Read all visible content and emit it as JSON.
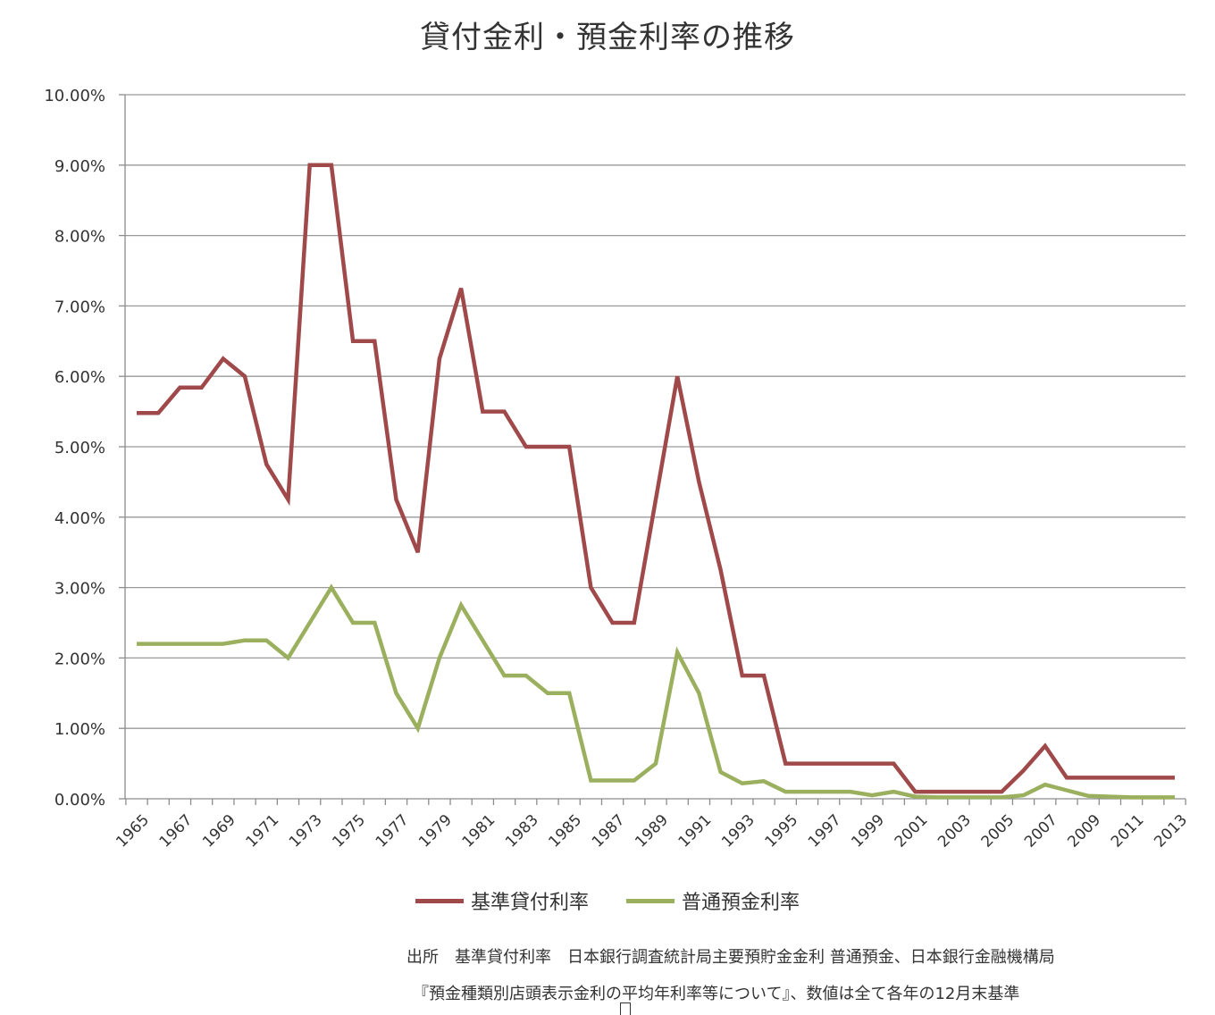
{
  "chart_data": {
    "type": "line",
    "title": "貸付金利・預金利率の推移",
    "x": [
      1965,
      1966,
      1967,
      1968,
      1969,
      1970,
      1971,
      1972,
      1973,
      1974,
      1975,
      1976,
      1977,
      1978,
      1979,
      1980,
      1981,
      1982,
      1983,
      1984,
      1985,
      1986,
      1987,
      1988,
      1989,
      1990,
      1991,
      1992,
      1993,
      1994,
      1995,
      1996,
      1997,
      1998,
      1999,
      2000,
      2001,
      2002,
      2003,
      2004,
      2005,
      2006,
      2007,
      2008,
      2009,
      2010,
      2011,
      2012,
      2013
    ],
    "x_tick_labels": [
      "1965",
      "1967",
      "1969",
      "1971",
      "1973",
      "1975",
      "1977",
      "1979",
      "1981",
      "1983",
      "1985",
      "1987",
      "1989",
      "1991",
      "1993",
      "1995",
      "1997",
      "1999",
      "2001",
      "2003",
      "2005",
      "2007",
      "2009",
      "2011",
      "2013"
    ],
    "y_tick_labels": [
      "0.00%",
      "1.00%",
      "2.00%",
      "3.00%",
      "4.00%",
      "5.00%",
      "6.00%",
      "7.00%",
      "8.00%",
      "9.00%",
      "10.00%"
    ],
    "ylim": [
      0,
      10
    ],
    "grid": "horizontal",
    "legend_position": "bottom",
    "series": [
      {
        "name": "基準貸付利率",
        "color": "#a0494a",
        "values": [
          5.48,
          5.48,
          5.84,
          5.84,
          6.25,
          6.0,
          4.75,
          4.25,
          9.0,
          9.0,
          6.5,
          6.5,
          4.25,
          3.5,
          6.25,
          7.25,
          5.5,
          5.5,
          5.0,
          5.0,
          5.0,
          3.0,
          2.5,
          2.5,
          4.25,
          6.0,
          4.5,
          3.25,
          1.75,
          1.75,
          0.5,
          0.5,
          0.5,
          0.5,
          0.5,
          0.5,
          0.1,
          0.1,
          0.1,
          0.1,
          0.1,
          0.4,
          0.75,
          0.3,
          0.3,
          0.3,
          0.3,
          0.3,
          0.3
        ]
      },
      {
        "name": "普通預金利率",
        "color": "#9bb05e",
        "values": [
          2.2,
          2.2,
          2.2,
          2.2,
          2.2,
          2.25,
          2.25,
          2.0,
          2.5,
          3.0,
          2.5,
          2.5,
          1.5,
          1.0,
          2.0,
          2.75,
          2.25,
          1.75,
          1.75,
          1.5,
          1.5,
          0.26,
          0.26,
          0.26,
          0.5,
          2.08,
          1.5,
          0.38,
          0.22,
          0.25,
          0.1,
          0.1,
          0.1,
          0.1,
          0.05,
          0.1,
          0.03,
          0.02,
          0.02,
          0.02,
          0.02,
          0.05,
          0.2,
          0.12,
          0.04,
          0.03,
          0.02,
          0.02,
          0.02
        ]
      }
    ]
  },
  "source": {
    "line1": "出所　基準貸付利率　日本銀行調査統計局主要預貯金金利 普通預金、日本銀行金融機構局",
    "line2": "『預金種類別店頭表示金利の平均年利率等について』、数値は全て各年の12月末基準"
  }
}
